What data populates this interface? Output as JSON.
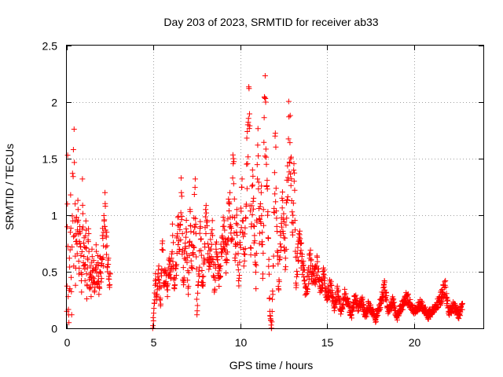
{
  "chart_data": {
    "type": "scatter",
    "title": "Day 203 of 2023, SRMTID for receiver ab33",
    "xlabel": "GPS time / hours",
    "ylabel": "SRMTID / TECUs",
    "xlim": [
      0,
      24
    ],
    "ylim": [
      0,
      2.5
    ],
    "xticks": [
      0,
      5,
      10,
      15,
      20
    ],
    "yticks": [
      0,
      0.5,
      1,
      1.5,
      2,
      2.5
    ],
    "xtick_labels": [
      "0",
      "5",
      "10",
      "15",
      "20"
    ],
    "ytick_labels": [
      "0",
      "0.5",
      "1",
      "1.5",
      "2",
      "2.5"
    ],
    "grid": true,
    "marker": "+",
    "color": "#ff0000",
    "series": [
      {
        "name": "ab33",
        "segments": [
          {
            "x_range": [
              0.0,
              2.55
            ],
            "samples": [
              [
                0.0,
                0.15
              ],
              [
                0.05,
                1.53
              ],
              [
                0.08,
                0.28
              ],
              [
                0.12,
                0.05
              ],
              [
                0.15,
                0.62
              ],
              [
                0.18,
                0.35
              ],
              [
                0.2,
                0.85
              ],
              [
                0.22,
                1.18
              ],
              [
                0.25,
                0.45
              ],
              [
                0.28,
                0.12
              ],
              [
                0.3,
                0.72
              ],
              [
                0.33,
                1.37
              ],
              [
                0.35,
                0.95
              ],
              [
                0.38,
                1.58
              ],
              [
                0.4,
                0.55
              ],
              [
                0.42,
                1.76
              ],
              [
                0.45,
                0.82
              ],
              [
                0.48,
                1.1
              ],
              [
                0.5,
                0.38
              ],
              [
                0.55,
                0.98
              ],
              [
                0.6,
                0.66
              ],
              [
                0.65,
                1.05
              ],
              [
                0.7,
                0.48
              ],
              [
                0.75,
                0.9
              ],
              [
                0.8,
                0.72
              ],
              [
                0.85,
                0.32
              ],
              [
                0.9,
                1.32
              ],
              [
                0.95,
                0.58
              ],
              [
                1.0,
                0.8
              ],
              [
                1.05,
                0.42
              ],
              [
                1.1,
                0.95
              ],
              [
                1.15,
                0.26
              ],
              [
                1.2,
                0.62
              ],
              [
                1.25,
                0.88
              ],
              [
                1.3,
                0.36
              ],
              [
                1.35,
                0.55
              ],
              [
                1.4,
                0.28
              ],
              [
                1.45,
                0.7
              ],
              [
                1.5,
                0.45
              ],
              [
                1.55,
                0.6
              ],
              [
                1.6,
                0.32
              ],
              [
                1.65,
                0.52
              ],
              [
                1.7,
                0.68
              ],
              [
                1.75,
                0.4
              ],
              [
                1.8,
                0.58
              ],
              [
                1.85,
                0.3
              ],
              [
                1.9,
                0.5
              ],
              [
                1.95,
                0.62
              ],
              [
                2.0,
                0.44
              ],
              [
                2.05,
                0.82
              ],
              [
                2.1,
                0.55
              ],
              [
                2.15,
                0.95
              ],
              [
                2.2,
                1.2
              ],
              [
                2.22,
                1.08
              ],
              [
                2.25,
                0.72
              ],
              [
                2.3,
                0.85
              ],
              [
                2.35,
                0.5
              ],
              [
                2.4,
                0.62
              ],
              [
                2.45,
                0.38
              ],
              [
                2.5,
                0.48
              ]
            ]
          },
          {
            "x_range": [
              4.95,
              22.8
            ],
            "samples": [
              [
                4.95,
                0.0
              ],
              [
                5.05,
                0.22
              ],
              [
                5.1,
                0.42
              ],
              [
                5.2,
                0.3
              ],
              [
                5.3,
                0.55
              ],
              [
                5.4,
                0.2
              ],
              [
                5.5,
                0.75
              ],
              [
                5.6,
                0.38
              ],
              [
                5.7,
                0.5
              ],
              [
                5.8,
                0.28
              ],
              [
                5.9,
                0.62
              ],
              [
                6.0,
                0.45
              ],
              [
                6.1,
                0.82
              ],
              [
                6.2,
                0.35
              ],
              [
                6.3,
                0.55
              ],
              [
                6.4,
                0.98
              ],
              [
                6.5,
                0.7
              ],
              [
                6.6,
                1.2
              ],
              [
                6.7,
                0.42
              ],
              [
                6.8,
                0.62
              ],
              [
                6.9,
                0.85
              ],
              [
                7.0,
                0.3
              ],
              [
                7.1,
                1.05
              ],
              [
                7.2,
                0.55
              ],
              [
                7.3,
                0.72
              ],
              [
                7.4,
                1.32
              ],
              [
                7.5,
                0.12
              ],
              [
                7.6,
                0.48
              ],
              [
                7.7,
                0.9
              ],
              [
                7.8,
                0.38
              ],
              [
                7.9,
                0.62
              ],
              [
                8.0,
                1.05
              ],
              [
                8.2,
                0.55
              ],
              [
                8.4,
                0.82
              ],
              [
                8.5,
                0.32
              ],
              [
                8.6,
                0.7
              ],
              [
                8.8,
                0.45
              ],
              [
                9.0,
                0.9
              ],
              [
                9.2,
                0.58
              ],
              [
                9.4,
                1.2
              ],
              [
                9.5,
                0.78
              ],
              [
                9.6,
                1.5
              ],
              [
                9.7,
                0.6
              ],
              [
                9.8,
                1.05
              ],
              [
                9.9,
                0.42
              ],
              [
                10.0,
                0.85
              ],
              [
                10.1,
                1.32
              ],
              [
                10.2,
                0.55
              ],
              [
                10.3,
                0.98
              ],
              [
                10.4,
                1.74
              ],
              [
                10.5,
                2.12
              ],
              [
                10.6,
                0.65
              ],
              [
                10.7,
                1.4
              ],
              [
                10.8,
                0.9
              ],
              [
                10.9,
                0.35
              ],
              [
                11.0,
                1.62
              ],
              [
                11.1,
                0.75
              ],
              [
                11.2,
                1.2
              ],
              [
                11.3,
                0.48
              ],
              [
                11.4,
                2.04
              ],
              [
                11.5,
                1.45
              ],
              [
                11.6,
                0.8
              ],
              [
                11.7,
                0.15
              ],
              [
                11.8,
                0.0
              ],
              [
                11.9,
                0.55
              ],
              [
                12.0,
                1.7
              ],
              [
                12.1,
                0.9
              ],
              [
                12.2,
                0.35
              ],
              [
                12.4,
                1.15
              ],
              [
                12.6,
                0.62
              ],
              [
                12.8,
                1.87
              ],
              [
                12.9,
                1.5
              ],
              [
                13.0,
                0.85
              ],
              [
                13.1,
                1.3
              ],
              [
                13.2,
                0.4
              ],
              [
                13.4,
                0.78
              ],
              [
                13.6,
                0.55
              ],
              [
                13.8,
                0.3
              ],
              [
                14.0,
                0.62
              ],
              [
                14.2,
                0.42
              ],
              [
                14.4,
                0.55
              ],
              [
                14.6,
                0.35
              ],
              [
                14.8,
                0.48
              ],
              [
                15.0,
                0.28
              ],
              [
                15.2,
                0.4
              ],
              [
                15.4,
                0.18
              ],
              [
                15.6,
                0.32
              ],
              [
                15.8,
                0.15
              ],
              [
                16.0,
                0.3
              ],
              [
                16.2,
                0.22
              ],
              [
                16.4,
                0.12
              ],
              [
                16.6,
                0.28
              ],
              [
                16.8,
                0.18
              ],
              [
                17.0,
                0.25
              ],
              [
                17.2,
                0.1
              ],
              [
                17.4,
                0.22
              ],
              [
                17.6,
                0.15
              ],
              [
                17.8,
                0.08
              ],
              [
                18.0,
                0.2
              ],
              [
                18.2,
                0.3
              ],
              [
                18.3,
                0.42
              ],
              [
                18.5,
                0.15
              ],
              [
                18.8,
                0.25
              ],
              [
                19.0,
                0.1
              ],
              [
                19.3,
                0.2
              ],
              [
                19.6,
                0.28
              ],
              [
                20.0,
                0.15
              ],
              [
                20.4,
                0.22
              ],
              [
                20.8,
                0.12
              ],
              [
                21.2,
                0.18
              ],
              [
                21.5,
                0.25
              ],
              [
                21.8,
                0.38
              ],
              [
                22.0,
                0.15
              ],
              [
                22.3,
                0.2
              ],
              [
                22.6,
                0.12
              ],
              [
                22.8,
                0.22
              ]
            ]
          }
        ]
      }
    ]
  }
}
